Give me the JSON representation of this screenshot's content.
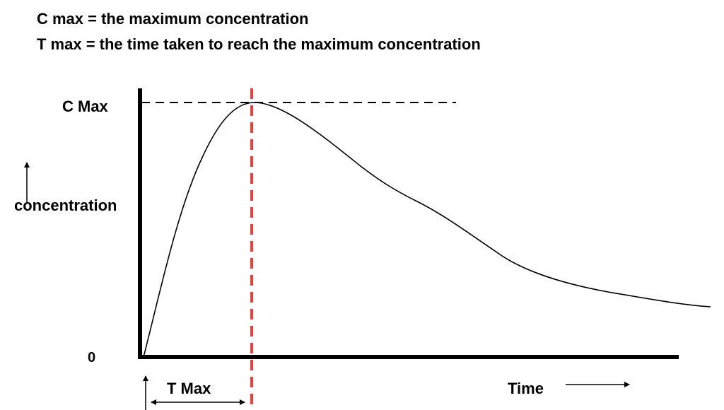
{
  "definitions": {
    "cmax": "C max = the maximum concentration",
    "tmax": "T max = the time taken to reach the maximum concentration"
  },
  "labels": {
    "c_max": "C Max",
    "zero": "0",
    "y_axis": "concentration",
    "t_max": "T Max",
    "x_axis": "Time"
  },
  "colors": {
    "curve": "#000000",
    "axes": "#000000",
    "tmax_marker": "#e8413d",
    "cmax_guide": "#000000"
  }
}
